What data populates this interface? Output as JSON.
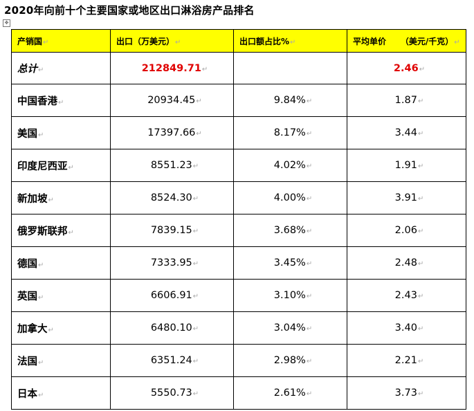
{
  "document": {
    "title": "2020年向前十个主要国家或地区出口淋浴房产品排名",
    "paragraph_mark": "↵"
  },
  "table": {
    "headers": [
      "产销国",
      "出口（万美元）",
      "出口额占比%",
      "平均单价     （美元/千克）"
    ],
    "total": {
      "label": "总计",
      "export": "212849.71",
      "share": "",
      "price": "2.46"
    },
    "rows": [
      {
        "country": "中国香港",
        "export": "20934.45",
        "share": "9.84%",
        "price": "1.87"
      },
      {
        "country": "美国",
        "export": "17397.66",
        "share": "8.17%",
        "price": "3.44"
      },
      {
        "country": "印度尼西亚",
        "export": "8551.23",
        "share": "4.02%",
        "price": "1.91"
      },
      {
        "country": "新加坡",
        "export": "8524.30",
        "share": "4.00%",
        "price": "3.91"
      },
      {
        "country": "俄罗斯联邦",
        "export": "7839.15",
        "share": "3.68%",
        "price": "2.06"
      },
      {
        "country": "德国",
        "export": "7333.95",
        "share": "3.45%",
        "price": "2.48"
      },
      {
        "country": "英国",
        "export": "6606.91",
        "share": "3.10%",
        "price": "2.43"
      },
      {
        "country": "加拿大",
        "export": "6480.10",
        "share": "3.04%",
        "price": "3.40"
      },
      {
        "country": "法国",
        "export": "6351.24",
        "share": "2.98%",
        "price": "2.21"
      },
      {
        "country": "日本",
        "export": "5550.73",
        "share": "2.61%",
        "price": "3.73"
      }
    ]
  },
  "colors": {
    "header_background": "#ffff00",
    "total_value_color": "#e00000",
    "grid_color": "#000000"
  }
}
